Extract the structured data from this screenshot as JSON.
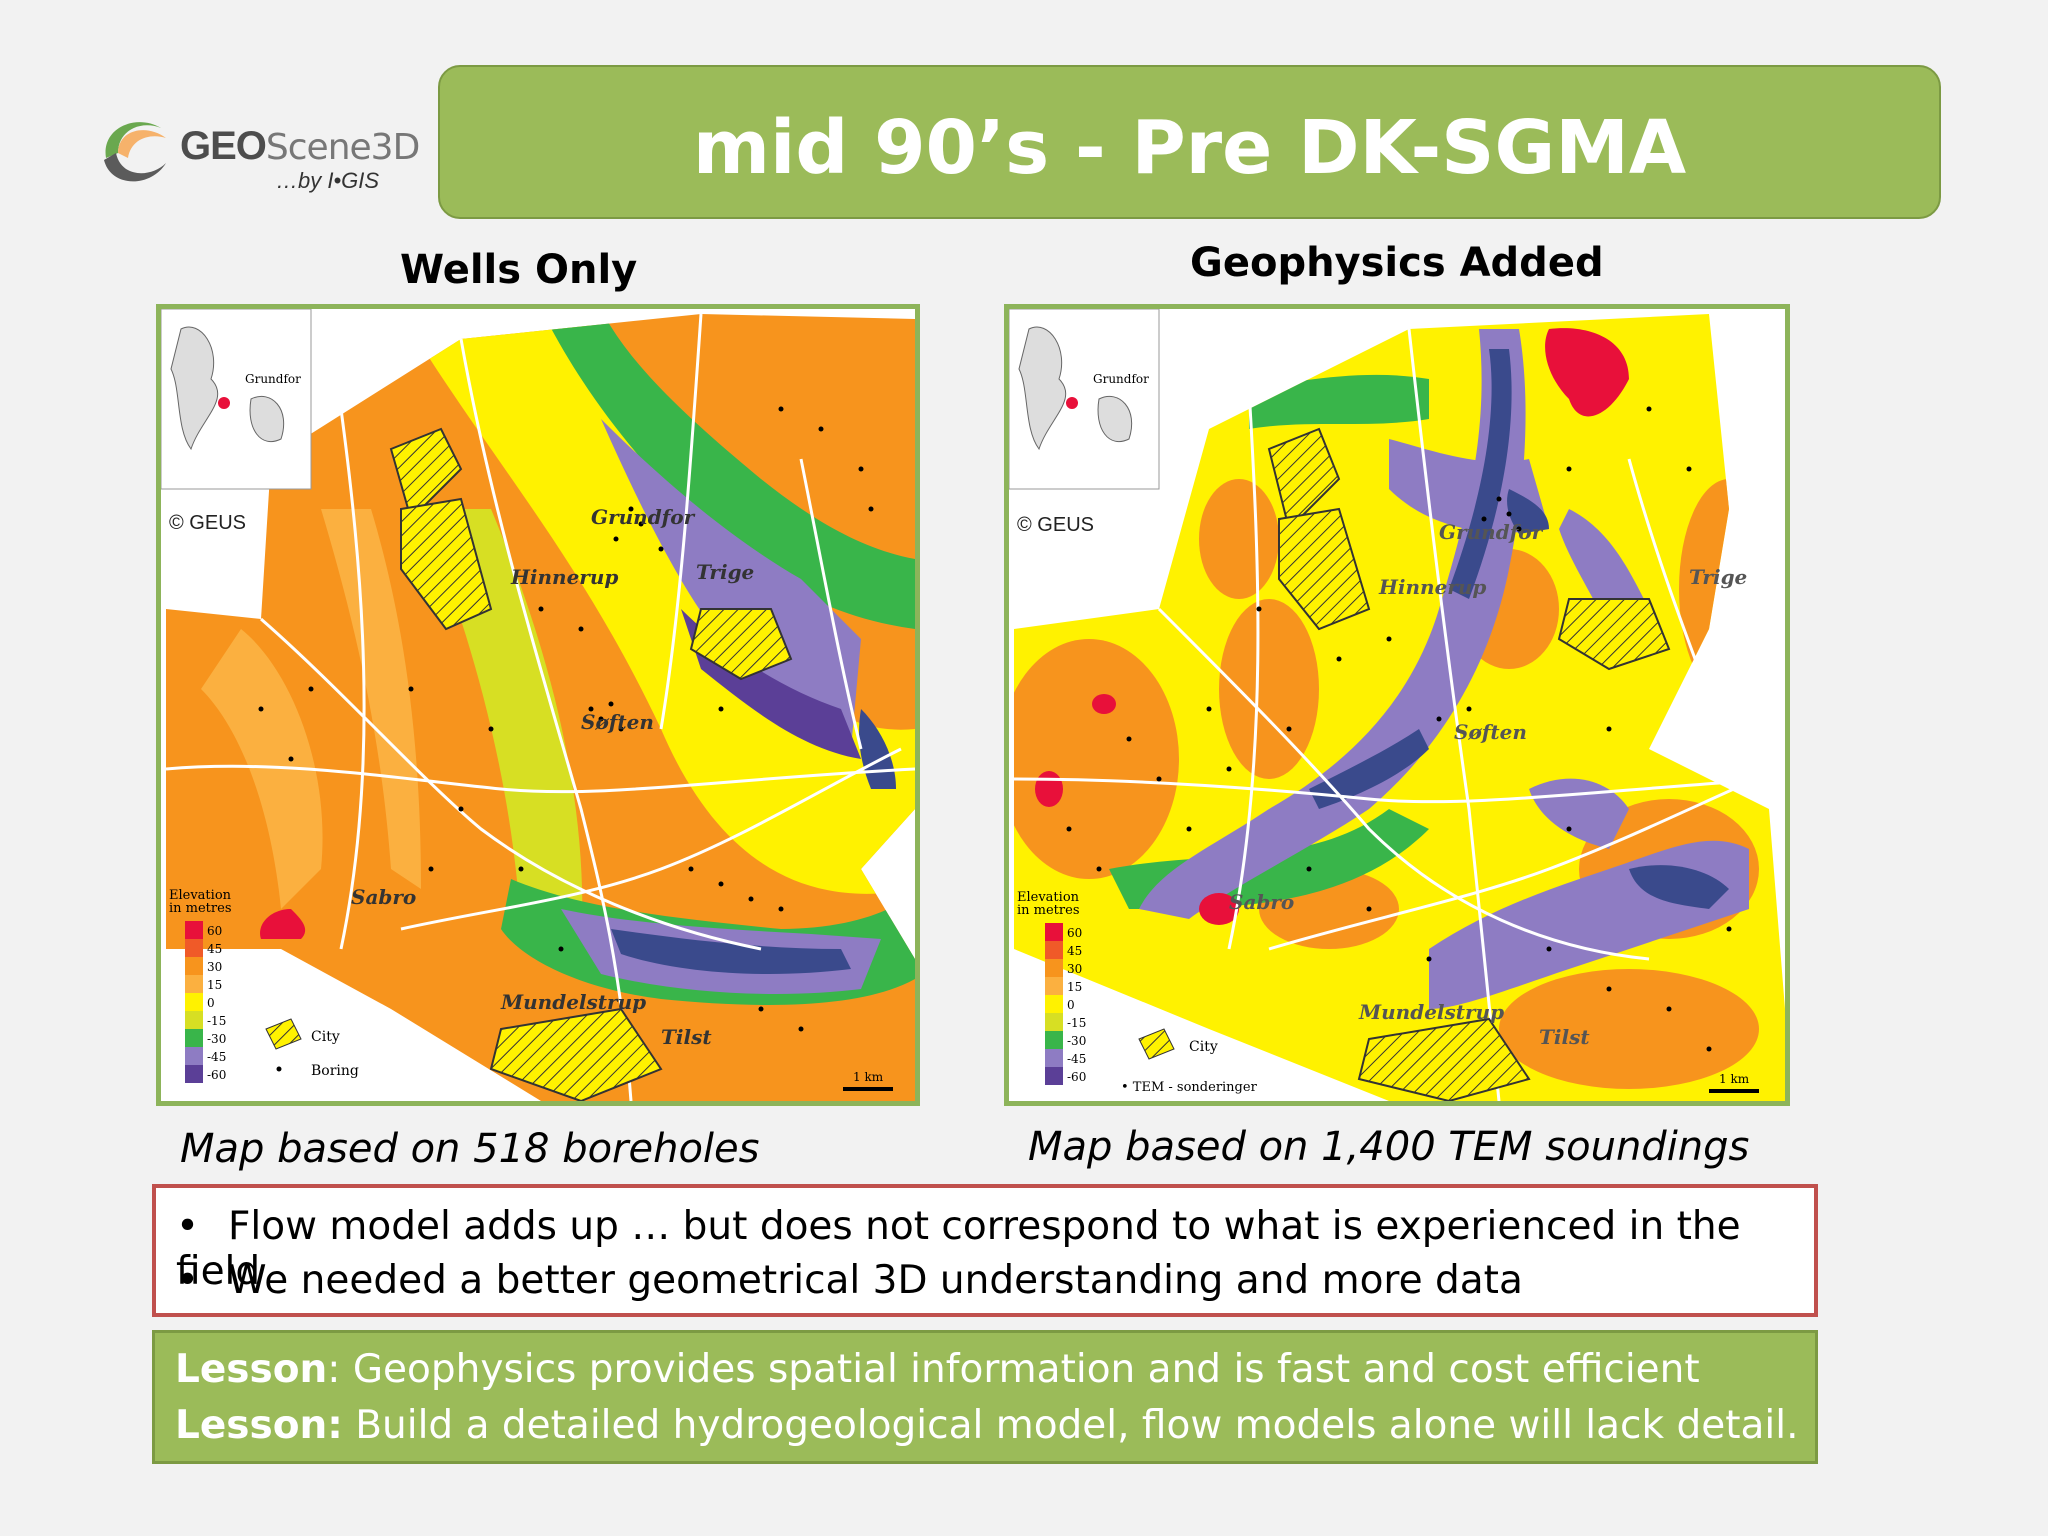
{
  "logo": {
    "brand_bold": "GEO",
    "brand_light": "Scene3D",
    "by_text": "…by I•GIS"
  },
  "title": "mid 90’s - Pre DK-SGMA",
  "left_panel": {
    "heading": "Wells Only",
    "caption": "Map based on 518 boreholes",
    "map_labels": {
      "inset_town": "Grundfor",
      "copyright": "© GEUS",
      "towns": [
        "Grundfor",
        "Hinnerup",
        "Trige",
        "Søften",
        "Sabro",
        "Mundelstrup",
        "Tilst"
      ],
      "legend_title_1": "Elevation",
      "legend_title_2": "in metres",
      "legend_values": [
        "60",
        "45",
        "30",
        "15",
        "0",
        "-15",
        "-30",
        "-45",
        "-60"
      ],
      "city_label": "City",
      "point_label": "Boring",
      "scale": "1 km"
    }
  },
  "right_panel": {
    "heading": "Geophysics Added",
    "caption": "Map based on 1,400 TEM soundings",
    "map_labels": {
      "inset_town": "Grundfor",
      "copyright": "© GEUS",
      "towns": [
        "Grundfor",
        "Hinnerup",
        "Trige",
        "Søften",
        "Sabro",
        "Mundelstrup",
        "Tilst"
      ],
      "legend_title_1": "Elevation",
      "legend_title_2": "in metres",
      "legend_values": [
        "60",
        "45",
        "30",
        "15",
        "0",
        "-15",
        "-30",
        "-45",
        "-60"
      ],
      "city_label": "City",
      "point_label": "• TEM - sonderinger",
      "scale": "1 km"
    }
  },
  "bullets": [
    "Flow model adds up … but does not correspond to what is experienced in the field",
    "We needed a better geometrical 3D understanding and more data"
  ],
  "bullet_symbol": "•",
  "lessons": [
    {
      "label": "Lesson",
      "text": ": Geophysics provides spatial information and is fast and cost efficient"
    },
    {
      "label": "Lesson:",
      "text": " Build a detailed hydrogeological model, flow models alone will lack detail."
    }
  ],
  "colors": {
    "title_green": "#9bbb59",
    "border_red": "#c0504d",
    "legend": [
      "#e8103a",
      "#f05a28",
      "#f7941d",
      "#fbb040",
      "#fff200",
      "#d7df23",
      "#39b54a",
      "#8e7cc3",
      "#5b3f97",
      "#3a4a8c"
    ]
  }
}
